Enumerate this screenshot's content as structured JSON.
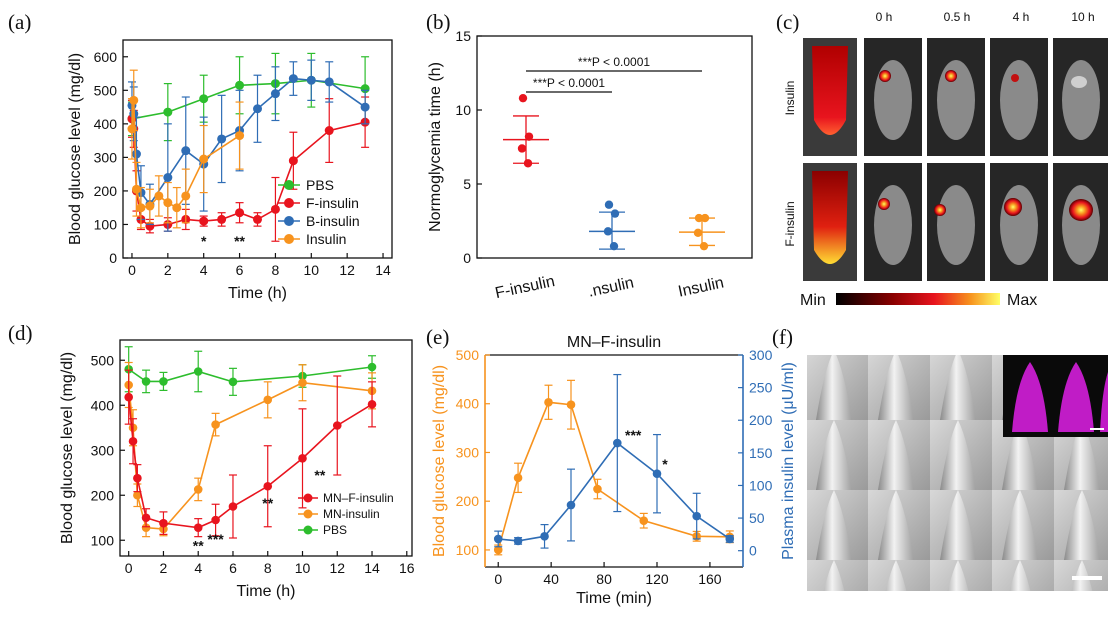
{
  "colors": {
    "green": "#2dbd2d",
    "red": "#e8141e",
    "blue": "#2f6db5",
    "orange": "#f7931e",
    "magenta": "#e020e8"
  },
  "chart_data": [
    {
      "id": "a",
      "type": "line",
      "panel_label": "(a)",
      "xlabel": "Time (h)",
      "ylabel": "Blood glucose level (mg/dl)",
      "xlim": [
        -0.5,
        14.5
      ],
      "ylim": [
        0,
        650
      ],
      "xticks": [
        0,
        2,
        4,
        6,
        8,
        10,
        12,
        14
      ],
      "yticks": [
        0,
        100,
        200,
        300,
        400,
        500,
        600
      ],
      "legend_position": "center-right",
      "series": [
        {
          "name": "PBS",
          "color": "#2dbd2d",
          "x": [
            0,
            2,
            4,
            6,
            8,
            10,
            13
          ],
          "y": [
            415,
            435,
            475,
            515,
            520,
            530,
            505
          ],
          "err": [
            50,
            85,
            70,
            85,
            90,
            80,
            95
          ]
        },
        {
          "name": "F-insulin",
          "color": "#e8141e",
          "x": [
            0,
            0.1,
            0.25,
            0.5,
            1,
            2,
            3,
            4,
            5,
            6,
            7,
            8,
            9,
            11,
            13
          ],
          "y": [
            415,
            385,
            200,
            115,
            95,
            100,
            115,
            110,
            115,
            135,
            115,
            145,
            290,
            380,
            405
          ],
          "err": [
            55,
            55,
            60,
            30,
            20,
            20,
            30,
            15,
            20,
            30,
            20,
            95,
            85,
            95,
            75
          ]
        },
        {
          "name": "B-insulin",
          "color": "#2f6db5",
          "x": [
            0,
            0.1,
            0.25,
            0.5,
            1,
            2,
            3,
            4,
            5,
            6,
            7,
            8,
            9,
            10,
            11,
            13
          ],
          "y": [
            455,
            430,
            310,
            195,
            160,
            240,
            320,
            280,
            355,
            380,
            445,
            490,
            535,
            530,
            525,
            450
          ],
          "err": [
            70,
            80,
            110,
            80,
            60,
            160,
            160,
            140,
            130,
            120,
            100,
            80,
            50,
            60,
            60,
            50
          ]
        },
        {
          "name": "Insulin",
          "color": "#f7931e",
          "x": [
            0,
            0.1,
            0.25,
            0.5,
            1,
            1.5,
            2,
            2.5,
            3,
            4,
            6
          ],
          "y": [
            385,
            470,
            205,
            150,
            155,
            185,
            165,
            150,
            185,
            295,
            365
          ],
          "err": [
            90,
            90,
            80,
            60,
            50,
            60,
            60,
            60,
            80,
            100,
            100
          ]
        }
      ],
      "annotations": [
        {
          "x": 4,
          "y": 65,
          "text": "*"
        },
        {
          "x": 6,
          "y": 65,
          "text": "**"
        }
      ]
    },
    {
      "id": "b",
      "type": "scatter",
      "panel_label": "(b)",
      "ylabel": "Normoglycemia time (h)",
      "categories": [
        "F-insulin",
        ".nsulin",
        "Insulin"
      ],
      "ylim": [
        0,
        15
      ],
      "yticks": [
        0,
        5,
        10,
        15
      ],
      "groups": [
        {
          "color": "#e8141e",
          "points": [
            10.8,
            8.2,
            7.4,
            6.4
          ],
          "mean": 8.0,
          "sd_low": 6.4,
          "sd_high": 9.6
        },
        {
          "color": "#2f6db5",
          "points": [
            3.6,
            3.0,
            1.8,
            0.8
          ],
          "mean": 1.8,
          "sd_low": 0.6,
          "sd_high": 3.1
        },
        {
          "color": "#f7931e",
          "points": [
            2.7,
            2.7,
            1.7,
            0.8
          ],
          "mean": 1.75,
          "sd_low": 0.85,
          "sd_high": 2.7
        }
      ],
      "significance": [
        {
          "from": 0,
          "to": 2,
          "text": "***P < 0.0001"
        },
        {
          "from": 0,
          "to": 1,
          "text": "***P < 0.0001"
        }
      ]
    },
    {
      "id": "d",
      "type": "line",
      "panel_label": "(d)",
      "xlabel": "Time (h)",
      "ylabel": "Blood glucose level (mg/dl)",
      "xlim": [
        -0.5,
        16.3
      ],
      "ylim": [
        65,
        545
      ],
      "xticks": [
        0,
        2,
        4,
        6,
        8,
        10,
        12,
        14,
        16
      ],
      "yticks": [
        100,
        200,
        300,
        400,
        500
      ],
      "legend_position": "bottom-right",
      "series": [
        {
          "name": "PBS",
          "color": "#2dbd2d",
          "x": [
            0,
            1,
            2,
            4,
            6,
            10,
            14
          ],
          "y": [
            480,
            453,
            453,
            475,
            452,
            465,
            485
          ],
          "err": [
            50,
            25,
            20,
            45,
            30,
            25,
            25
          ]
        },
        {
          "name": "MN-insulin",
          "color": "#f7931e",
          "x": [
            0,
            0.25,
            0.5,
            1,
            2,
            4,
            5,
            8,
            10,
            14
          ],
          "y": [
            445,
            350,
            200,
            128,
            125,
            213,
            357,
            412,
            450,
            432
          ],
          "err": [
            50,
            40,
            25,
            20,
            15,
            25,
            25,
            40,
            40,
            40
          ]
        },
        {
          "name": "MN–F-insulin",
          "color": "#e8141e",
          "x": [
            0,
            0.25,
            0.5,
            1,
            2,
            4,
            5,
            6,
            8,
            10,
            12,
            14
          ],
          "y": [
            418,
            320,
            238,
            150,
            138,
            128,
            145,
            175,
            220,
            282,
            355,
            402
          ],
          "err": [
            60,
            50,
            30,
            20,
            25,
            20,
            35,
            70,
            90,
            110,
            110,
            50
          ]
        }
      ],
      "annotations": [
        {
          "x": 4,
          "y": 95,
          "text": "**"
        },
        {
          "x": 5,
          "y": 110,
          "text": "***"
        },
        {
          "x": 8,
          "y": 190,
          "text": "**"
        },
        {
          "x": 11,
          "y": 252,
          "text": "**"
        }
      ]
    },
    {
      "id": "e",
      "type": "line",
      "panel_label": "(e)",
      "title": "MN–F-insulin",
      "xlabel": "Time (min)",
      "ylabel": "Blood glucose level (mg/dl)",
      "y2label": "Plasma insulin level (μU/ml)",
      "xlim": [
        -10,
        185
      ],
      "ylim": [
        65,
        500
      ],
      "y2lim": [
        -25,
        300
      ],
      "xticks": [
        0,
        40,
        80,
        120,
        160
      ],
      "yticks": [
        100,
        200,
        300,
        400,
        500
      ],
      "y2ticks": [
        0,
        50,
        100,
        150,
        200,
        250,
        300
      ],
      "series": [
        {
          "name": "Blood glucose",
          "axis": "left",
          "color": "#f7931e",
          "x": [
            0,
            15,
            38,
            55,
            75,
            110,
            150,
            175
          ],
          "y": [
            100,
            248,
            403,
            398,
            225,
            160,
            128,
            127
          ],
          "err": [
            10,
            30,
            35,
            50,
            20,
            15,
            10,
            12
          ]
        },
        {
          "name": "Plasma insulin",
          "axis": "right",
          "color": "#2f6db5",
          "x": [
            0,
            15,
            35,
            55,
            90,
            120,
            150,
            175
          ],
          "y": [
            18,
            15,
            22,
            70,
            165,
            118,
            53,
            18
          ],
          "err": [
            12,
            5,
            18,
            55,
            105,
            60,
            35,
            5
          ]
        }
      ],
      "annotations": [
        {
          "x": 102,
          "y": 170,
          "axis": "right",
          "text": "***"
        },
        {
          "x": 126,
          "y": 125,
          "axis": "right",
          "text": "*"
        }
      ]
    }
  ],
  "panel_c": {
    "label": "(c)",
    "timepoints": [
      "0 h",
      "0.5 h",
      "4 h",
      "10 h"
    ],
    "rows": [
      "Insulin",
      "F-insulin"
    ],
    "colorbar_min": "Min",
    "colorbar_max": "Max"
  },
  "panel_f": {
    "label": "(f)"
  }
}
